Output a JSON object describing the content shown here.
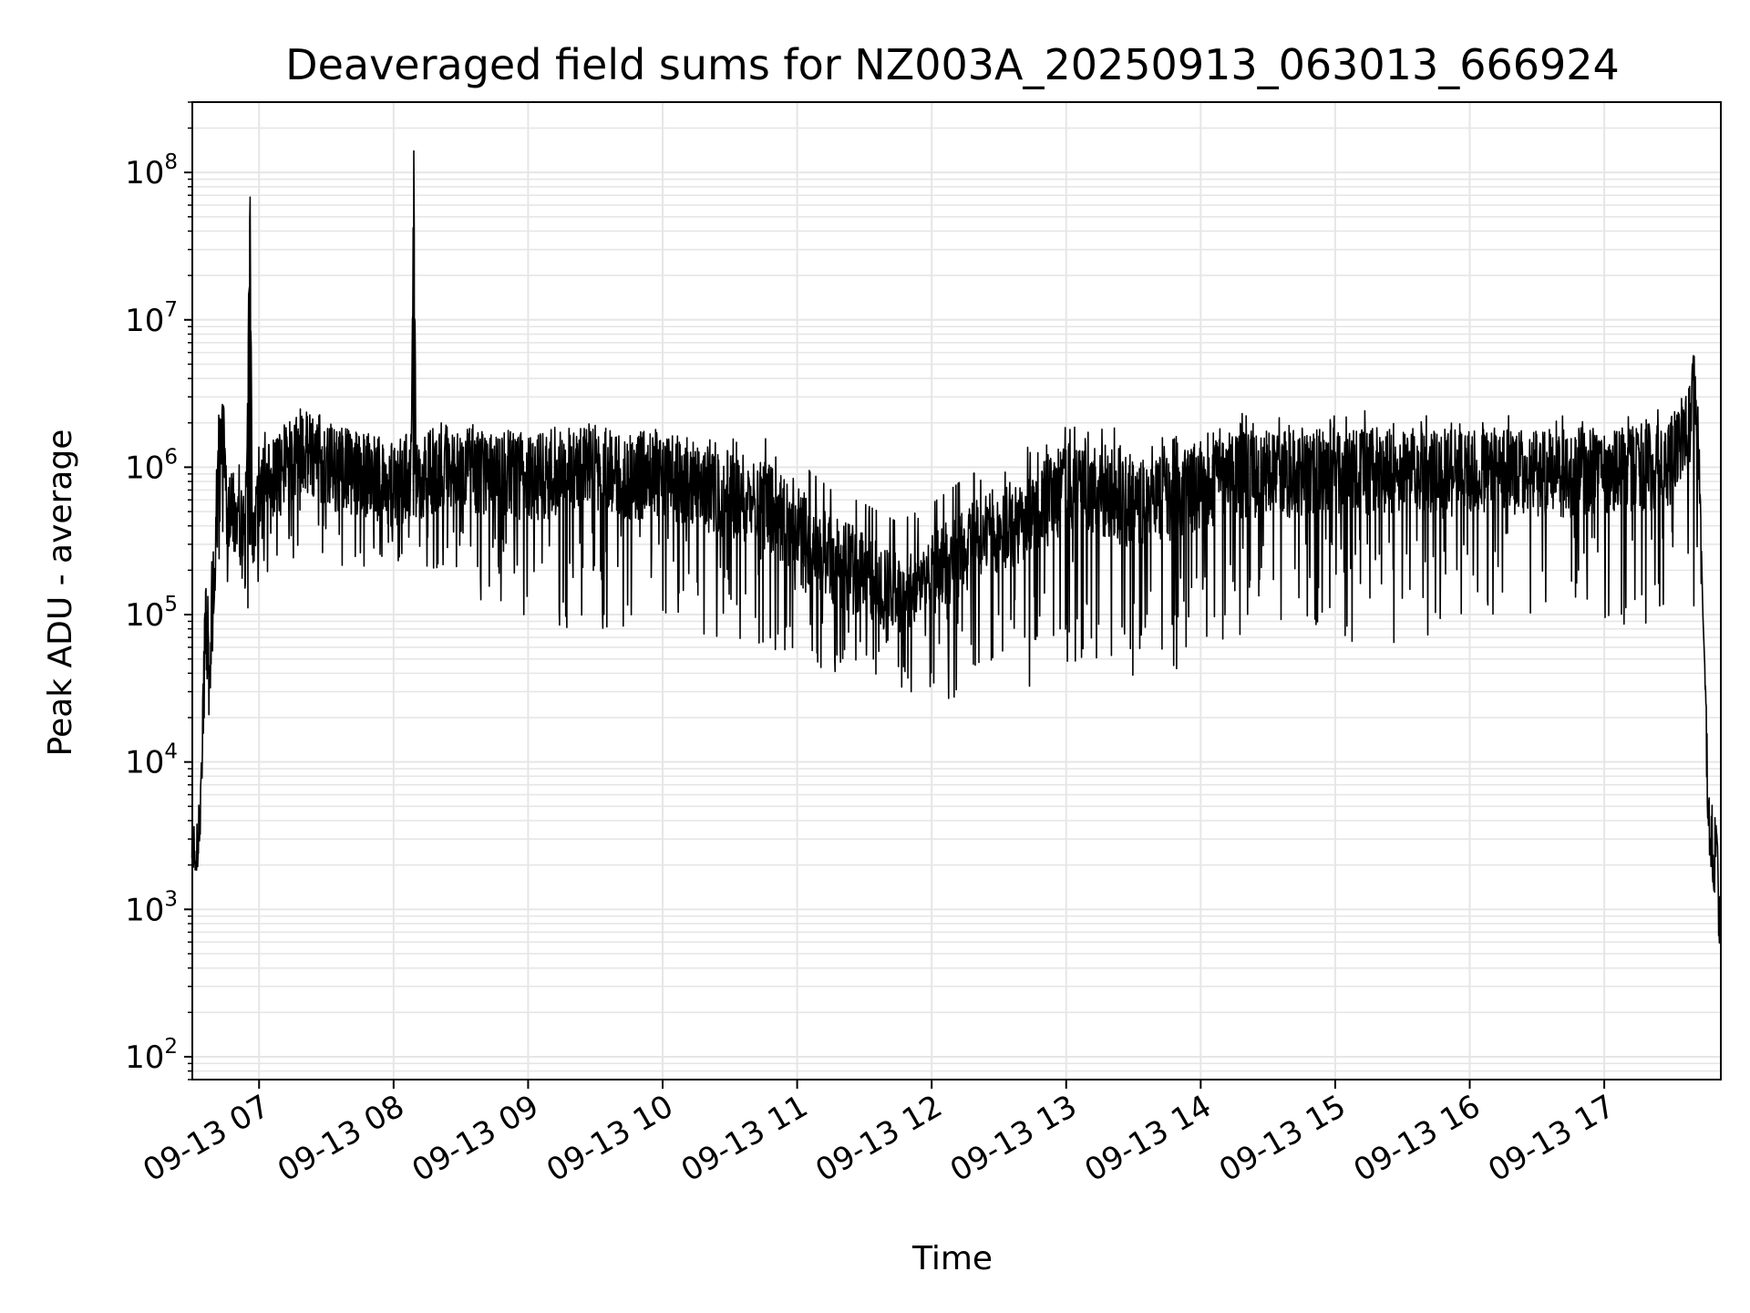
{
  "chart_data": {
    "type": "line",
    "title": "Deaveraged field sums for NZ003A_20250913_063013_666924",
    "xlabel": "Time",
    "ylabel": "Peak ADU - average",
    "yscale": "log",
    "ylim": [
      70,
      300000000
    ],
    "xlim": [
      "09-13 06:30:13",
      "09-13 17:52:00"
    ],
    "grid": true,
    "line_color": "#000000",
    "grid_color": "#e6e6e6",
    "x_ticks": [
      {
        "value": "09-13 07:00",
        "label": "09-13 07"
      },
      {
        "value": "09-13 08:00",
        "label": "09-13 08"
      },
      {
        "value": "09-13 09:00",
        "label": "09-13 09"
      },
      {
        "value": "09-13 10:00",
        "label": "09-13 10"
      },
      {
        "value": "09-13 11:00",
        "label": "09-13 11"
      },
      {
        "value": "09-13 12:00",
        "label": "09-13 12"
      },
      {
        "value": "09-13 13:00",
        "label": "09-13 13"
      },
      {
        "value": "09-13 14:00",
        "label": "09-13 14"
      },
      {
        "value": "09-13 15:00",
        "label": "09-13 15"
      },
      {
        "value": "09-13 16:00",
        "label": "09-13 16"
      },
      {
        "value": "09-13 17:00",
        "label": "09-13 17"
      }
    ],
    "y_ticks": [
      {
        "value": 100,
        "base": "10",
        "exp": "2"
      },
      {
        "value": 1000,
        "base": "10",
        "exp": "3"
      },
      {
        "value": 10000,
        "base": "10",
        "exp": "4"
      },
      {
        "value": 100000,
        "base": "10",
        "exp": "5"
      },
      {
        "value": 1000000,
        "base": "10",
        "exp": "6"
      },
      {
        "value": 10000000,
        "base": "10",
        "exp": "7"
      },
      {
        "value": 100000000,
        "base": "10",
        "exp": "8"
      }
    ],
    "series": [
      {
        "x": [
          "09-13 06:30",
          "09-13 06:32",
          "09-13 06:34",
          "09-13 06:36",
          "09-13 06:38",
          "09-13 06:40",
          "09-13 06:42",
          "09-13 06:44",
          "09-13 06:46",
          "09-13 06:48",
          "09-13 06:50",
          "09-13 06:52",
          "09-13 06:54",
          "09-13 06:56",
          "09-13 06:57",
          "09-13 06:58",
          "09-13 07:00",
          "09-13 07:05",
          "09-13 07:10",
          "09-13 07:15",
          "09-13 07:20",
          "09-13 07:25",
          "09-13 07:30",
          "09-13 07:40",
          "09-13 07:50",
          "09-13 08:00",
          "09-13 08:08",
          "09-13 08:09",
          "09-13 08:10",
          "09-13 08:20",
          "09-13 08:30",
          "09-13 08:45",
          "09-13 09:00",
          "09-13 09:15",
          "09-13 09:30",
          "09-13 09:45",
          "09-13 10:00",
          "09-13 10:15",
          "09-13 10:30",
          "09-13 10:45",
          "09-13 11:00",
          "09-13 11:15",
          "09-13 11:30",
          "09-13 11:45",
          "09-13 12:00",
          "09-13 12:15",
          "09-13 12:30",
          "09-13 12:45",
          "09-13 13:00",
          "09-13 13:15",
          "09-13 13:30",
          "09-13 13:45",
          "09-13 14:00",
          "09-13 14:15",
          "09-13 14:30",
          "09-13 14:45",
          "09-13 15:00",
          "09-13 15:15",
          "09-13 15:30",
          "09-13 15:45",
          "09-13 16:00",
          "09-13 16:15",
          "09-13 16:30",
          "09-13 16:45",
          "09-13 17:00",
          "09-13 17:15",
          "09-13 17:30",
          "09-13 17:38",
          "09-13 17:40",
          "09-13 17:42",
          "09-13 17:44",
          "09-13 17:46",
          "09-13 17:48",
          "09-13 17:50",
          "09-13 17:52"
        ],
        "values": [
          3000,
          2500,
          6000,
          100000,
          50000,
          200000,
          1500000,
          2500000,
          400000,
          600000,
          300000,
          500000,
          300000,
          68000000,
          300000,
          400000,
          800000,
          900000,
          1000000,
          1200000,
          1500000,
          1300000,
          1100000,
          1000000,
          900000,
          800000,
          1000000,
          140000000,
          900000,
          1100000,
          1000000,
          1000000,
          900000,
          1000000,
          1100000,
          900000,
          1000000,
          800000,
          700000,
          600000,
          400000,
          250000,
          200000,
          150000,
          200000,
          300000,
          400000,
          500000,
          800000,
          700000,
          600000,
          650000,
          800000,
          900000,
          1000000,
          950000,
          1000000,
          1000000,
          1000000,
          950000,
          1000000,
          1000000,
          1000000,
          950000,
          1000000,
          1000000,
          1200000,
          2000000,
          6000000,
          1000000,
          500000,
          8000,
          3000,
          2000,
          500
        ],
        "envelope_low": [
          2000,
          1800,
          2000,
          20000,
          20000,
          100000,
          200000,
          200000,
          100000,
          100000,
          100000,
          100000,
          100000,
          100000,
          150000,
          150000,
          150000,
          200000,
          200000,
          200000,
          250000,
          250000,
          250000,
          200000,
          200000,
          200000,
          200000,
          200000,
          200000,
          200000,
          150000,
          100000,
          80000,
          80000,
          80000,
          80000,
          80000,
          70000,
          70000,
          60000,
          50000,
          40000,
          30000,
          28000,
          25000,
          25000,
          25000,
          30000,
          40000,
          40000,
          35000,
          30000,
          50000,
          60000,
          70000,
          70000,
          70000,
          60000,
          60000,
          60000,
          70000,
          80000,
          80000,
          80000,
          80000,
          80000,
          100000,
          100000,
          100000,
          100000,
          50000,
          3000,
          1500,
          1000,
          450
        ],
        "envelope_high": [
          4000,
          3500,
          7000,
          150000,
          150000,
          2000000,
          2500000,
          2700000,
          1500000,
          1500000,
          1000000,
          1200000,
          1200000,
          68000000,
          1500000,
          1500000,
          1800000,
          2000000,
          2200000,
          2500000,
          2600000,
          2500000,
          2000000,
          1800000,
          1700000,
          1600000,
          1700000,
          140000000,
          1700000,
          2000000,
          2000000,
          1900000,
          1900000,
          1900000,
          2000000,
          1900000,
          1900000,
          1800000,
          1700000,
          1600000,
          1500000,
          1300000,
          1200000,
          1100000,
          1100000,
          1200000,
          1400000,
          1800000,
          2500000,
          2200000,
          1800000,
          1700000,
          2000000,
          2300000,
          2500000,
          2400000,
          2500000,
          2600000,
          2400000,
          2300000,
          2400000,
          2400000,
          2300000,
          2300000,
          2200000,
          2400000,
          2600000,
          3500000,
          6000000,
          2600000,
          100000,
          15000,
          8000,
          5000,
          900
        ]
      }
    ]
  }
}
